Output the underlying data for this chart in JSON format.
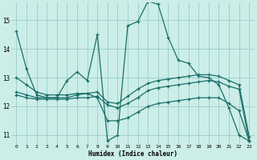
{
  "xlabel": "Humidex (Indice chaleur)",
  "background_color": "#cceee8",
  "grid_color": "#99cccc",
  "line_color": "#1a6e6a",
  "xlim": [
    -0.5,
    23.5
  ],
  "ylim": [
    10.7,
    15.6
  ],
  "yticks": [
    11,
    12,
    13,
    14,
    15
  ],
  "xticks": [
    0,
    1,
    2,
    3,
    4,
    5,
    6,
    7,
    8,
    9,
    10,
    11,
    12,
    13,
    14,
    15,
    16,
    17,
    18,
    19,
    20,
    21,
    22,
    23
  ],
  "line1_y": [
    14.6,
    13.3,
    12.4,
    12.3,
    12.3,
    12.9,
    13.2,
    12.9,
    14.5,
    10.8,
    11.0,
    14.8,
    14.95,
    15.65,
    15.55,
    14.4,
    13.6,
    13.5,
    13.05,
    13.0,
    12.75,
    11.95,
    11.0,
    10.8
  ],
  "line2_y": [
    12.4,
    12.3,
    12.25,
    12.25,
    12.25,
    12.25,
    12.3,
    12.3,
    12.35,
    12.05,
    11.95,
    12.1,
    12.3,
    12.55,
    12.65,
    12.7,
    12.75,
    12.8,
    12.85,
    12.9,
    12.85,
    12.7,
    12.6,
    10.8
  ],
  "line3_y": [
    12.5,
    12.4,
    12.3,
    12.3,
    12.3,
    12.3,
    12.4,
    12.45,
    12.5,
    12.15,
    12.1,
    12.35,
    12.6,
    12.8,
    12.9,
    12.95,
    13.0,
    13.05,
    13.1,
    13.1,
    13.05,
    12.9,
    12.75,
    10.95
  ],
  "line4_y": [
    13.0,
    12.75,
    12.5,
    12.4,
    12.4,
    12.4,
    12.45,
    12.45,
    12.3,
    11.5,
    11.5,
    11.6,
    11.8,
    12.0,
    12.1,
    12.15,
    12.2,
    12.25,
    12.3,
    12.3,
    12.3,
    12.1,
    11.85,
    10.8
  ]
}
